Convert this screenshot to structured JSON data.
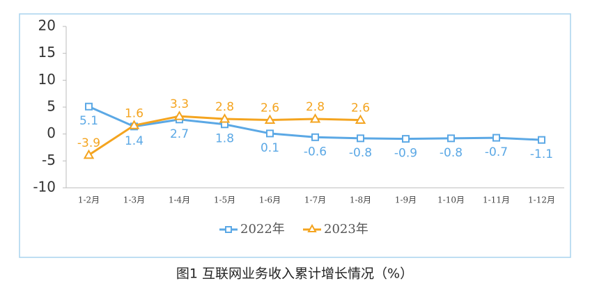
{
  "chart_data": {
    "type": "line",
    "title": "图1  互联网业务收入累计增长情况（%）",
    "categories": [
      "1-2月",
      "1-3月",
      "1-4月",
      "1-5月",
      "1-6月",
      "1-7月",
      "1-8月",
      "1-9月",
      "1-10月",
      "1-11月",
      "1-12月"
    ],
    "series": [
      {
        "name": "2022年",
        "color": "#5ba8e5",
        "marker": "square",
        "values": [
          5.1,
          1.4,
          2.7,
          1.8,
          0.1,
          -0.6,
          -0.8,
          -0.9,
          -0.8,
          -0.7,
          -1.1
        ]
      },
      {
        "name": "2023年",
        "color": "#f4a41f",
        "marker": "triangle",
        "values": [
          -3.9,
          1.6,
          3.3,
          2.8,
          2.6,
          2.8,
          2.6,
          null,
          null,
          null,
          null
        ]
      }
    ],
    "ylim": [
      -10,
      20
    ],
    "yticks": [
      -10,
      -5,
      0,
      5,
      10,
      15,
      20
    ],
    "legend": "bottom"
  }
}
